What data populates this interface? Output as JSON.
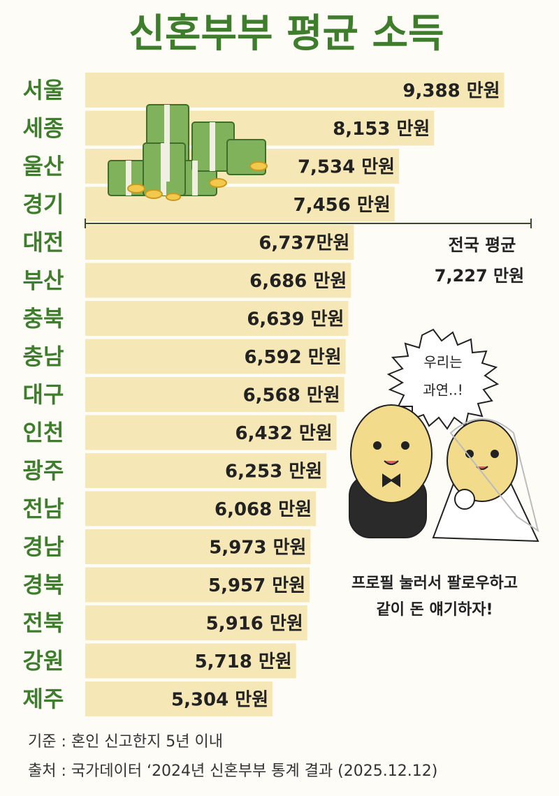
{
  "chart_data": {
    "type": "bar",
    "orientation": "horizontal",
    "title": "신혼부부 평균 소득",
    "categories": [
      "서울",
      "세종",
      "울산",
      "경기",
      "대전",
      "부산",
      "충북",
      "충남",
      "대구",
      "인천",
      "광주",
      "전남",
      "경남",
      "경북",
      "전북",
      "강원",
      "제주"
    ],
    "values": [
      9388,
      8153,
      7534,
      7456,
      6737,
      6686,
      6639,
      6592,
      6568,
      6432,
      6253,
      6068,
      5973,
      5957,
      5916,
      5718,
      5304
    ],
    "value_labels": [
      "9,388 만원",
      "8,153 만원",
      "7,534 만원",
      "7,456 만원",
      "6,737만원",
      "6,686 만원",
      "6,639 만원",
      "6,592 만원",
      "6,568 만원",
      "6,432 만원",
      "6,253 만원",
      "6,068 만원",
      "5,973 만원",
      "5,957 만원",
      "5,916 만원",
      "5,718 만원",
      "5,304 만원"
    ],
    "color": "#f6e8b6",
    "xlim": [
      2000,
      9800
    ],
    "average": {
      "label": "전국 평균",
      "value": 7227,
      "value_label": "7,227 만원"
    },
    "speech_bubble": [
      "우리는",
      "과연..!"
    ],
    "call_to_action": [
      "프로필 눌러서 팔로우하고",
      "같이 돈 얘기하자!"
    ],
    "notes": [
      "기준 : 혼인 신고한지 5년 이내",
      "출처 : 국가데이터 ‘2024년 신혼부부 통계 결과 (2025.12.12)"
    ]
  }
}
